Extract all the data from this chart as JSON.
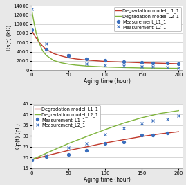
{
  "top": {
    "model_L1_x": [
      0,
      3,
      6,
      10,
      15,
      20,
      30,
      40,
      50,
      60,
      75,
      100,
      125,
      150,
      165,
      180,
      200
    ],
    "model_L1_y": [
      8700,
      7800,
      7000,
      6100,
      5200,
      4500,
      3600,
      3100,
      2700,
      2450,
      2200,
      1900,
      1750,
      1600,
      1550,
      1480,
      1380
    ],
    "model_L2_x": [
      0,
      3,
      6,
      10,
      15,
      20,
      30,
      40,
      50,
      60,
      75,
      100,
      125,
      150,
      165,
      180,
      200
    ],
    "model_L2_y": [
      13300,
      10500,
      8200,
      6000,
      4200,
      3200,
      2100,
      1600,
      1300,
      1100,
      900,
      700,
      580,
      490,
      460,
      430,
      400
    ],
    "meas_L1_x": [
      0,
      20,
      50,
      75,
      100,
      125,
      150,
      165,
      185,
      200
    ],
    "meas_L1_y": [
      8700,
      4500,
      3200,
      2500,
      2200,
      1900,
      1700,
      1600,
      1500,
      1350
    ],
    "meas_L2_x": [
      0,
      20,
      50,
      75,
      100,
      125,
      150,
      165,
      185,
      200
    ],
    "meas_L2_y": [
      13300,
      5800,
      3200,
      1450,
      1150,
      950,
      800,
      720,
      630,
      480
    ],
    "ylabel": "Rs(t) (kΩ)",
    "xlabel": "Aging time (hour)",
    "ylim": [
      0,
      14000
    ],
    "yticks": [
      0,
      2000,
      4000,
      6000,
      8000,
      10000,
      12000,
      14000
    ],
    "xticks": [
      0,
      50,
      100,
      150,
      200
    ],
    "xlim": [
      0,
      205
    ]
  },
  "bottom": {
    "model_L1_x": [
      0,
      25,
      50,
      75,
      100,
      125,
      150,
      175,
      200
    ],
    "model_L1_y": [
      19.0,
      21.3,
      23.3,
      25.0,
      26.8,
      28.3,
      29.8,
      31.0,
      32.0
    ],
    "model_L2_x": [
      0,
      25,
      50,
      75,
      100,
      125,
      150,
      175,
      200
    ],
    "model_L2_y": [
      19.0,
      22.8,
      26.5,
      29.8,
      33.0,
      36.0,
      38.5,
      40.5,
      41.8
    ],
    "meas_L1_x": [
      0,
      20,
      50,
      75,
      100,
      125,
      150,
      165,
      185
    ],
    "meas_L1_y": [
      19.0,
      20.3,
      21.5,
      23.3,
      26.5,
      27.3,
      30.5,
      30.5,
      31.5
    ],
    "meas_L2_x": [
      0,
      20,
      50,
      75,
      100,
      125,
      150,
      165,
      185,
      200
    ],
    "meas_L2_y": [
      19.0,
      21.2,
      24.5,
      26.5,
      30.8,
      33.8,
      35.8,
      37.2,
      37.8,
      39.5
    ],
    "ylabel": "Cp(t) (pF)",
    "xlabel": "Aging time (hour)",
    "ylim": [
      15,
      45
    ],
    "yticks": [
      15,
      20,
      25,
      30,
      35,
      40,
      45
    ],
    "xticks": [
      0,
      50,
      100,
      150,
      200
    ],
    "xlim": [
      0,
      205
    ]
  },
  "color_L1": "#c0392b",
  "color_L2": "#7db33a",
  "color_meas": "#3a6ebd",
  "legend_labels": [
    "Degradation model_L1_1",
    "Degradation model_L2_1",
    "Measurement_L1_1",
    "Measurement_L2_1"
  ],
  "plot_bg": "#ffffff",
  "fig_bg": "#e8e8e8",
  "grid_color": "#d0d0d0",
  "fontsize": 5.5,
  "tick_fontsize": 5.0
}
